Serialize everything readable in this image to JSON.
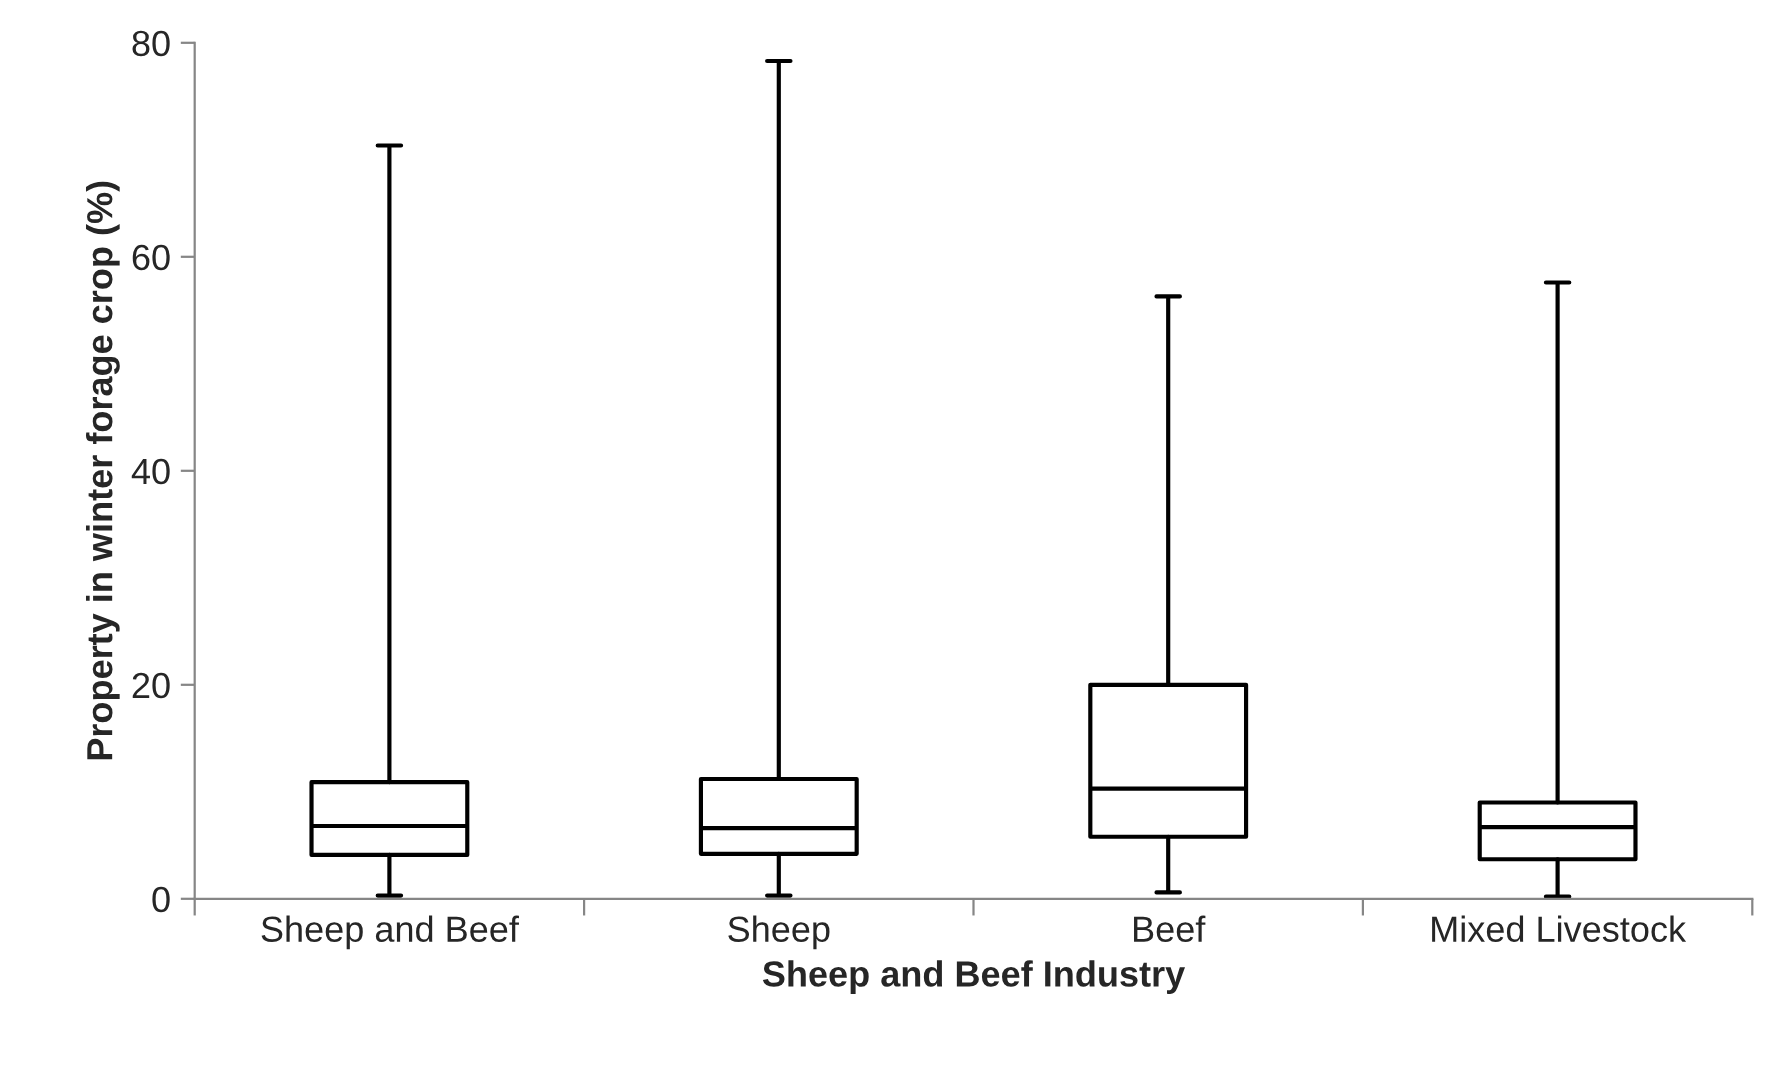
{
  "chart_data": {
    "type": "box",
    "xlabel": "Sheep and Beef Industry",
    "ylabel": "Property in winter forage crop (%)",
    "categories": [
      "Sheep and Beef",
      "Sheep",
      "Beef",
      "Mixed Livestock"
    ],
    "boxes": [
      {
        "low": 0.3,
        "q1": 4.1,
        "median": 6.8,
        "q3": 10.9,
        "high": 70.4
      },
      {
        "low": 0.3,
        "q1": 4.2,
        "median": 6.6,
        "q3": 11.2,
        "high": 78.3
      },
      {
        "low": 0.6,
        "q1": 5.8,
        "median": 10.3,
        "q3": 20.0,
        "high": 56.3
      },
      {
        "low": 0.2,
        "q1": 3.7,
        "median": 6.7,
        "q3": 9.0,
        "high": 57.6
      }
    ],
    "ylim": [
      0,
      80
    ],
    "yticks": [
      0,
      20,
      40,
      60,
      80
    ],
    "grid": false,
    "legend": false
  }
}
